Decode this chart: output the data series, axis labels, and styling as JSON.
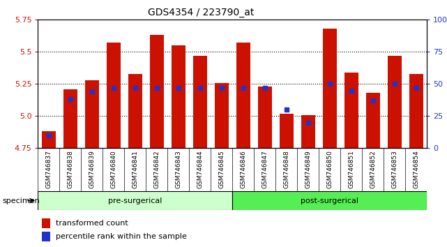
{
  "title": "GDS4354 / 223790_at",
  "samples": [
    "GSM746837",
    "GSM746838",
    "GSM746839",
    "GSM746840",
    "GSM746841",
    "GSM746842",
    "GSM746843",
    "GSM746844",
    "GSM746845",
    "GSM746846",
    "GSM746847",
    "GSM746848",
    "GSM746849",
    "GSM746850",
    "GSM746851",
    "GSM746852",
    "GSM746853",
    "GSM746854"
  ],
  "transformed_count": [
    4.88,
    5.21,
    5.28,
    5.57,
    5.33,
    5.63,
    5.55,
    5.47,
    5.26,
    5.57,
    5.23,
    5.02,
    5.01,
    5.68,
    5.34,
    5.18,
    5.47,
    5.33
  ],
  "percentile_rank": [
    10,
    38,
    44,
    47,
    47,
    47,
    47,
    47,
    47,
    47,
    47,
    30,
    20,
    50,
    45,
    37,
    50,
    47
  ],
  "pre_surgical_count": 9,
  "post_surgical_count": 9,
  "y_min": 4.75,
  "y_max": 5.75,
  "y_ticks": [
    4.75,
    5.0,
    5.25,
    5.5,
    5.75
  ],
  "right_y_ticks": [
    0,
    25,
    50,
    75,
    100
  ],
  "bar_color": "#cc1100",
  "blue_color": "#2233cc",
  "pre_surgical_color": "#ccffcc",
  "post_surgical_color": "#55ee55",
  "label_color_left": "#cc1100",
  "label_color_right": "#2233cc",
  "legend_transformed": "transformed count",
  "legend_percentile": "percentile rank within the sample",
  "pre_label": "pre-surgerical",
  "post_label": "post-surgerical",
  "specimen_label": "specimen",
  "xtick_bg_color": "#d8d8d8"
}
